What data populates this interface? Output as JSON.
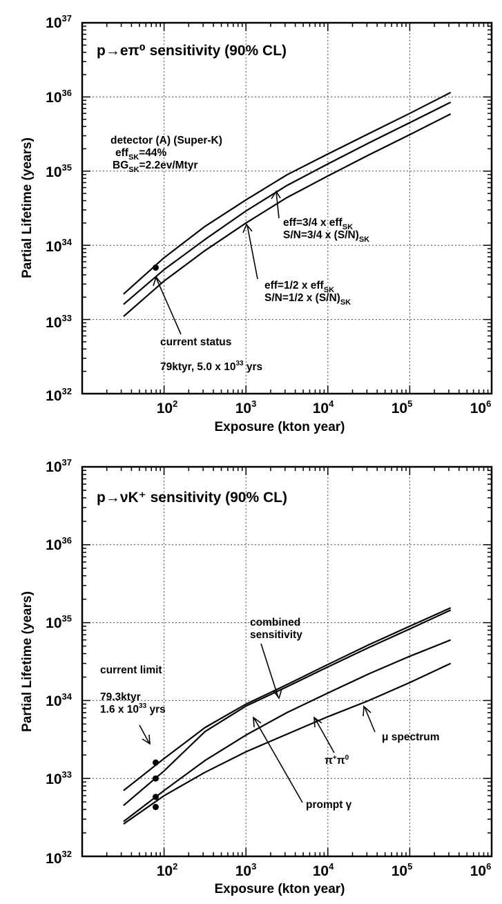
{
  "chart_data": [
    {
      "type": "line",
      "title": "p→eπ⁰ sensitivity (90% CL)",
      "xlabel": "Exposure (kton year)",
      "ylabel": "Partial Lifetime (years)",
      "x_scale": "log",
      "y_scale": "log",
      "xlim": [
        10,
        1000000
      ],
      "ylim": [
        1e+32,
        1e+37
      ],
      "x_ticks": [
        "10²",
        "10³",
        "10⁴",
        "10⁵",
        "10⁶"
      ],
      "y_ticks": [
        "10³²",
        "10³³",
        "10³⁴",
        "10³⁵",
        "10³⁶",
        "10³⁷"
      ],
      "grid": true,
      "series": [
        {
          "x": [
            32,
            100,
            316,
            1000,
            3162,
            10000,
            31623,
            100000,
            316228
          ],
          "y": [
            2.2e+33,
            6.8e+33,
            1.8e+34,
            4.1e+34,
            8.9e+34,
            1.7e+35,
            3.2e+35,
            6e+35,
            1.15e+36
          ]
        },
        {
          "x": [
            32,
            100,
            316,
            1000,
            3162,
            10000,
            31623,
            100000,
            316228
          ],
          "y": [
            1.6e+33,
            4.7e+33,
            1.2e+34,
            2.9e+34,
            6.4e+34,
            1.25e+35,
            2.4e+35,
            4.5e+35,
            8.5e+35
          ]
        },
        {
          "x": [
            32,
            100,
            316,
            1000,
            3162,
            10000,
            31623,
            100000,
            316228
          ],
          "y": [
            1.1e+33,
            3.3e+33,
            8.5e+33,
            2e+34,
            4.4e+34,
            8.6e+34,
            1.65e+35,
            3.1e+35,
            5.9e+35
          ]
        }
      ],
      "points": [
        {
          "x": 79,
          "y": 5e+33
        }
      ],
      "annotations": {
        "detector_line1": "detector (A) (Super-K)",
        "detector_line2_main": "eff",
        "detector_line2_sub": "SK",
        "detector_line2_rest": "=44%",
        "detector_line3_main": "BG",
        "detector_line3_sub": "SK",
        "detector_line3_rest": "=2.2ev/Mtyr",
        "eff34_a": "eff=3/4 x eff",
        "eff34_a_sub": "SK",
        "eff34_b": "S/N=3/4 x (S/N)",
        "eff34_b_sub": "SK",
        "eff12_a": "eff=1/2 x eff",
        "eff12_a_sub": "SK",
        "eff12_b": "S/N=1/2 x (S/N)",
        "eff12_b_sub": "SK",
        "status_line1": "current status",
        "status_line2": "79ktyr, 5.0 x 10",
        "status_line2_sup": "33",
        "status_line2_rest": " yrs"
      }
    },
    {
      "type": "line",
      "title": "p→νK⁺ sensitivity (90% CL)",
      "xlabel": "Exposure (kton year)",
      "ylabel": "Partial Lifetime (years)",
      "x_scale": "log",
      "y_scale": "log",
      "xlim": [
        10,
        1000000
      ],
      "ylim": [
        1e+32,
        1e+37
      ],
      "x_ticks": [
        "10²",
        "10³",
        "10⁴",
        "10⁵",
        "10⁶"
      ],
      "y_ticks": [
        "10³²",
        "10³³",
        "10³⁴",
        "10³⁵",
        "10³⁶",
        "10³⁷"
      ],
      "grid": true,
      "series": [
        {
          "x": [
            32,
            100,
            316,
            1000,
            3162,
            10000,
            31623,
            100000,
            316228
          ],
          "y": [
            7e+32,
            1.8e+33,
            4.5e+33,
            9e+33,
            1.6e+34,
            2.9e+34,
            5.2e+34,
            9e+34,
            1.55e+35
          ]
        },
        {
          "x": [
            32,
            100,
            316,
            1000,
            3162,
            10000,
            31623,
            100000,
            316228
          ],
          "y": [
            4.5e+32,
            1.25e+33,
            4e+33,
            8.5e+33,
            1.5e+34,
            2.7e+34,
            4.8e+34,
            8.3e+34,
            1.45e+35
          ]
        },
        {
          "x": [
            32,
            100,
            316,
            1000,
            3162,
            10000,
            31623,
            100000,
            316228
          ],
          "y": [
            2.8e+32,
            7e+32,
            1.7e+33,
            3.6e+33,
            7e+33,
            1.25e+34,
            2.2e+34,
            3.7e+34,
            6e+34
          ]
        },
        {
          "x": [
            32,
            100,
            316,
            1000,
            3162,
            10000,
            31623,
            100000,
            316228
          ],
          "y": [
            2.6e+32,
            6e+32,
            1.2e+33,
            2.2e+33,
            3.7e+33,
            6.2e+33,
            1e+34,
            1.7e+34,
            3e+34
          ]
        }
      ],
      "points": [
        {
          "x": 79,
          "y": 1.6e+33
        },
        {
          "x": 79,
          "y": 1e+33
        },
        {
          "x": 79,
          "y": 5.8e+32
        },
        {
          "x": 79,
          "y": 4.3e+32
        }
      ],
      "annotations": {
        "combined_1": "combined",
        "combined_2": "sensitivity",
        "limit_1": "current limit",
        "limit_2": "79.3ktyr",
        "limit_3": "1.6 x 10",
        "limit_3_sup": "33",
        "limit_3_rest": " yrs",
        "pipi_main": "π",
        "pipi_sup1": "+",
        "pipi_mid": "π",
        "pipi_sup2": "0",
        "mu": "μ spectrum",
        "prompt": "prompt γ"
      }
    }
  ]
}
